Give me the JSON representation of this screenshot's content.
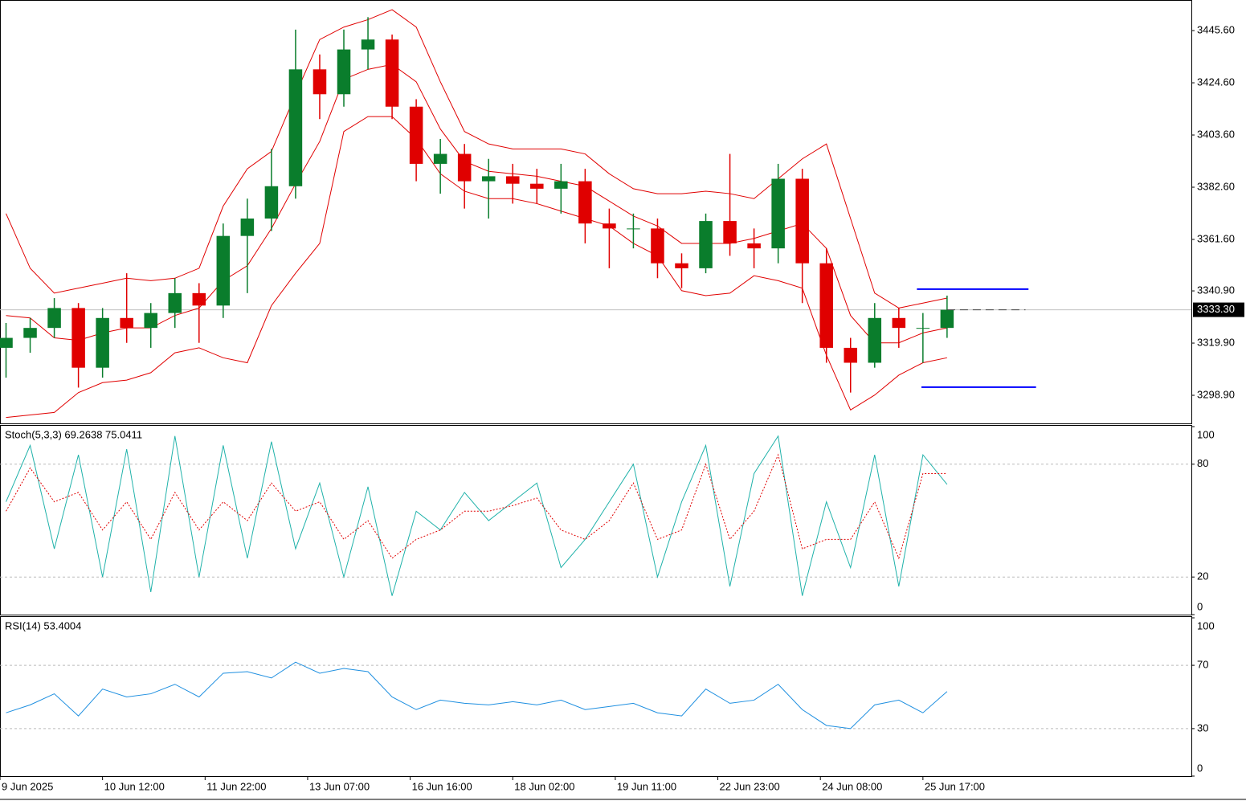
{
  "chart_data": [
    {
      "type": "candlestick",
      "x": [
        2,
        10,
        18,
        26,
        34,
        42,
        50,
        58,
        66,
        74,
        82,
        90,
        98,
        106,
        114,
        122,
        130,
        138,
        146,
        154,
        162,
        170,
        178,
        186,
        194,
        202,
        210,
        218,
        226,
        234,
        242,
        250,
        258,
        266,
        274,
        282,
        290,
        298,
        306,
        314
      ],
      "open": [
        3318,
        3322,
        3326,
        3334,
        3310,
        3330,
        3326,
        3332,
        3340,
        3335,
        3363,
        3370,
        3383,
        3430,
        3420,
        3438,
        3442,
        3415,
        3392,
        3396,
        3385,
        3387,
        3384,
        3382,
        3385,
        3368,
        3366,
        3366,
        3352,
        3350,
        3369,
        3360,
        3358,
        3386,
        3352,
        3318,
        3312,
        3330,
        3326,
        3326
      ],
      "high": [
        3328,
        3330,
        3338,
        3336,
        3334,
        3348,
        3336,
        3346,
        3344,
        3368,
        3378,
        3398,
        3446,
        3436,
        3446,
        3451,
        3444,
        3418,
        3402,
        3400,
        3394,
        3392,
        3390,
        3392,
        3390,
        3374,
        3372,
        3370,
        3356,
        3372,
        3396,
        3366,
        3392,
        3390,
        3358,
        3322,
        3336,
        3334,
        3332,
        3339
      ],
      "low": [
        3306,
        3316,
        3322,
        3302,
        3306,
        3320,
        3318,
        3326,
        3320,
        3330,
        3340,
        3365,
        3378,
        3410,
        3415,
        3430,
        3410,
        3385,
        3380,
        3374,
        3370,
        3376,
        3376,
        3372,
        3360,
        3350,
        3358,
        3346,
        3342,
        3348,
        3355,
        3350,
        3352,
        3336,
        3312,
        3300,
        3310,
        3318,
        3312,
        3322
      ],
      "close": [
        3322,
        3326,
        3334,
        3310,
        3330,
        3326,
        3332,
        3340,
        3335,
        3363,
        3370,
        3383,
        3430,
        3420,
        3438,
        3442,
        3415,
        3392,
        3396,
        3385,
        3387,
        3384,
        3382,
        3385,
        3368,
        3366,
        3366,
        3352,
        3350,
        3369,
        3360,
        3358,
        3386,
        3352,
        3318,
        3312,
        3330,
        3326,
        3326,
        3333.3
      ],
      "up_color": "#0a7d2c",
      "down_color": "#e00000",
      "upper": [
        3372,
        3350,
        3340,
        3342,
        3344,
        3346,
        3345,
        3346,
        3350,
        3375,
        3390,
        3397,
        3420,
        3442,
        3447,
        3450,
        3454,
        3447,
        3425,
        3405,
        3400,
        3398,
        3398,
        3398,
        3396,
        3388,
        3382,
        3380,
        3380,
        3381,
        3380,
        3378,
        3386,
        3394,
        3400,
        3370,
        3340,
        3334,
        3336,
        3338
      ],
      "middle": [
        3331,
        3330,
        3322,
        3321,
        3324,
        3326,
        3326,
        3331,
        3334,
        3345,
        3351,
        3366,
        3384,
        3401,
        3426,
        3430,
        3432,
        3425,
        3406,
        3393,
        3389,
        3388,
        3387,
        3385,
        3383,
        3377,
        3371,
        3367,
        3360,
        3360,
        3360,
        3362,
        3365,
        3368,
        3358,
        3331,
        3320,
        3320,
        3324,
        3326
      ],
      "lower": [
        3290,
        3291,
        3292,
        3300,
        3304,
        3305,
        3308,
        3316,
        3318,
        3314,
        3312,
        3335,
        3348,
        3360,
        3405,
        3411,
        3411,
        3402,
        3388,
        3381,
        3378,
        3378,
        3376,
        3373,
        3370,
        3367,
        3360,
        3355,
        3341,
        3339,
        3340,
        3347,
        3345,
        3342,
        3315,
        3293,
        3299,
        3307,
        3312,
        3314
      ],
      "band_color": "#e00000",
      "segments": [
        {
          "value": 3341.6,
          "x": [
            304,
            341
          ],
          "color": "#0000ff"
        },
        {
          "value": 3302.2,
          "x": [
            305.5,
            343.5
          ],
          "color": "#0000ff"
        }
      ],
      "last_price": 3333.3,
      "last_price_label": "3333.30",
      "last_dash_x": [
        314,
        340
      ],
      "xlim": [
        0,
        395
      ],
      "ylim": [
        3287.6,
        3457.9
      ],
      "xticks": [
        {
          "value": 0,
          "label": "9 Jun 2025"
        },
        {
          "value": 34,
          "label": "10 Jun 12:00"
        },
        {
          "value": 68,
          "label": "11 Jun 22:00"
        },
        {
          "value": 102,
          "label": "13 Jun 07:00"
        },
        {
          "value": 136,
          "label": "16 Jun 16:00"
        },
        {
          "value": 170,
          "label": "18 Jun 02:00"
        },
        {
          "value": 204,
          "label": "19 Jun 11:00"
        },
        {
          "value": 238,
          "label": "22 Jun 23:00"
        },
        {
          "value": 272,
          "label": "24 Jun 08:00"
        },
        {
          "value": 306,
          "label": "25 Jun 17:00"
        }
      ],
      "yticks": [
        {
          "value": 3298.9,
          "label": "3298.90"
        },
        {
          "value": 3319.9,
          "label": "3319.90"
        },
        {
          "value": 3340.9,
          "label": "3340.90"
        },
        {
          "value": 3361.6,
          "label": "3361.60"
        },
        {
          "value": 3382.6,
          "label": "3382.60"
        },
        {
          "value": 3403.6,
          "label": "3403.60"
        },
        {
          "value": 3424.6,
          "label": "3424.60"
        },
        {
          "value": 3445.6,
          "label": "3445.60"
        }
      ]
    },
    {
      "type": "line",
      "title": "Stoch(5,3,3) 69.2638 75.0411",
      "series": [
        {
          "color": "#20b2aa",
          "dash": false,
          "values": [
            60,
            90,
            35,
            85,
            20,
            88,
            12,
            95,
            20,
            90,
            30,
            92,
            35,
            70,
            20,
            68,
            10,
            55,
            45,
            65,
            50,
            60,
            70,
            25,
            40,
            60,
            80,
            20,
            60,
            90,
            15,
            75,
            95,
            10,
            60,
            25,
            85,
            15,
            85,
            69.2638
          ]
        },
        {
          "color": "#e00000",
          "dash": true,
          "values": [
            55,
            78,
            60,
            65,
            45,
            60,
            40,
            65,
            45,
            60,
            50,
            70,
            55,
            60,
            40,
            50,
            30,
            40,
            45,
            55,
            55,
            58,
            62,
            45,
            40,
            50,
            70,
            40,
            45,
            80,
            40,
            55,
            85,
            35,
            40,
            40,
            60,
            30,
            75,
            75.0411
          ]
        }
      ],
      "ylim": [
        0,
        100
      ],
      "yticks": [
        0,
        20,
        80,
        100
      ],
      "levels": [
        20,
        80
      ]
    },
    {
      "type": "line",
      "title": "RSI(14) 53.4004",
      "series": [
        {
          "color": "#1e8fe0",
          "dash": false,
          "values": [
            40,
            45,
            52,
            38,
            55,
            50,
            52,
            58,
            50,
            65,
            66,
            62,
            72,
            65,
            68,
            66,
            50,
            42,
            48,
            46,
            45,
            47,
            45,
            48,
            42,
            44,
            46,
            40,
            38,
            55,
            46,
            48,
            58,
            42,
            32,
            30,
            45,
            48,
            40,
            53.4004
          ]
        }
      ],
      "ylim": [
        0,
        100
      ],
      "yticks": [
        0,
        30,
        70,
        100
      ],
      "levels": [
        30,
        70
      ]
    }
  ]
}
